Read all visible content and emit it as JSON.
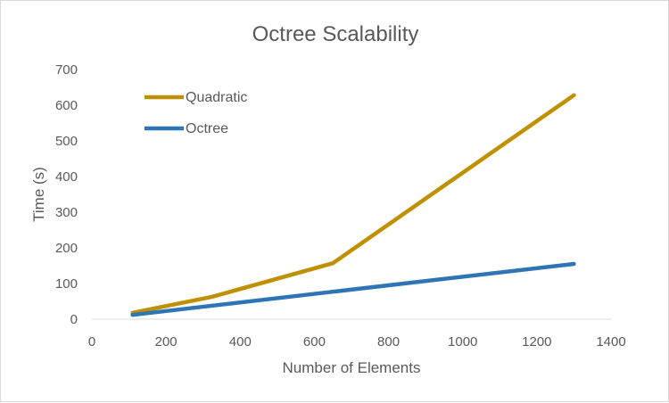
{
  "chart_data": {
    "type": "line",
    "title": "Octree Scalability",
    "xlabel": "Number of Elements",
    "ylabel": "Time (s)",
    "xlim": [
      0,
      1400
    ],
    "ylim": [
      0,
      700
    ],
    "x_ticks": [
      0,
      200,
      400,
      600,
      800,
      1000,
      1200,
      1400
    ],
    "y_ticks": [
      0,
      100,
      200,
      300,
      400,
      500,
      600,
      700
    ],
    "grid": false,
    "legend_position": "top-left",
    "series": [
      {
        "name": "Quadratic",
        "color": "#BF9000",
        "x": [
          110,
          325,
          650,
          1300
        ],
        "y": [
          18,
          63,
          157,
          628
        ]
      },
      {
        "name": "Octree",
        "color": "#2E75B6",
        "x": [
          110,
          325,
          650,
          1300
        ],
        "y": [
          12,
          38,
          77,
          155
        ]
      }
    ]
  }
}
